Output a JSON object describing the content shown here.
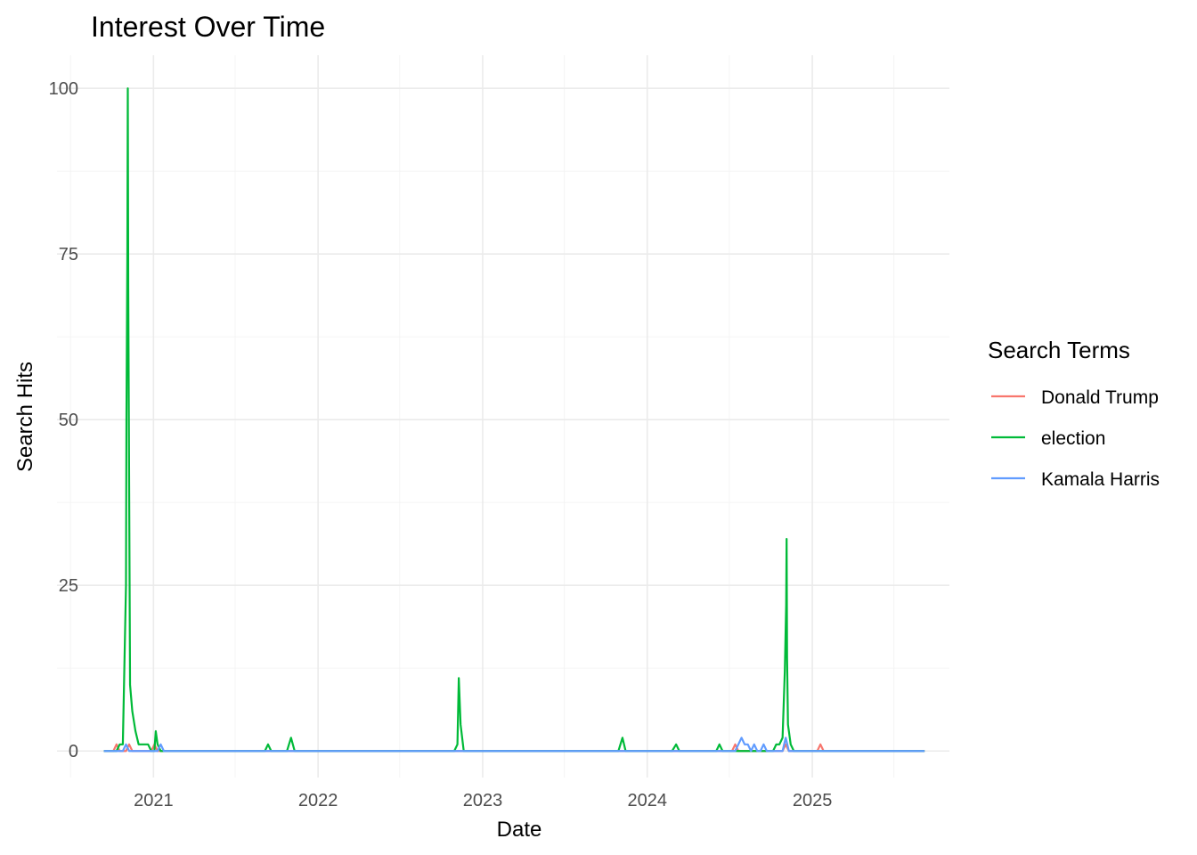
{
  "chart_data": {
    "type": "line",
    "title": "Interest Over Time",
    "xlabel": "Date",
    "ylabel": "Search Hits",
    "xlim": [
      "2020-06-01",
      "2025-11-01"
    ],
    "ylim": [
      -4,
      105
    ],
    "x_ticks": [
      {
        "date": "2021-01-01",
        "label": "2021"
      },
      {
        "date": "2022-01-01",
        "label": "2022"
      },
      {
        "date": "2023-01-01",
        "label": "2023"
      },
      {
        "date": "2024-01-01",
        "label": "2024"
      },
      {
        "date": "2025-01-01",
        "label": "2025"
      }
    ],
    "x_minor_ticks": [
      "2020-07-01",
      "2021-07-01",
      "2022-07-01",
      "2023-07-01",
      "2024-07-01",
      "2025-07-01"
    ],
    "y_ticks": [
      0,
      25,
      50,
      75,
      100
    ],
    "y_minor_ticks": [
      12.5,
      37.5,
      62.5,
      87.5
    ],
    "grid": true,
    "legend": {
      "title": "Search Terms",
      "position": "right"
    },
    "series": [
      {
        "name": "Donald Trump",
        "color": "#F8766D",
        "points": [
          [
            "2020-09-13",
            0
          ],
          [
            "2020-10-04",
            0
          ],
          [
            "2020-10-11",
            1
          ],
          [
            "2020-10-18",
            0
          ],
          [
            "2020-11-01",
            0
          ],
          [
            "2020-11-08",
            1
          ],
          [
            "2020-11-15",
            0
          ],
          [
            "2020-12-27",
            0
          ],
          [
            "2021-01-03",
            1
          ],
          [
            "2021-01-10",
            0
          ],
          [
            "2024-07-07",
            0
          ],
          [
            "2024-07-14",
            1
          ],
          [
            "2024-07-21",
            0
          ],
          [
            "2024-10-27",
            0
          ],
          [
            "2024-11-03",
            1
          ],
          [
            "2024-11-10",
            0
          ],
          [
            "2025-01-12",
            0
          ],
          [
            "2025-01-19",
            1
          ],
          [
            "2025-01-26",
            0
          ],
          [
            "2025-09-07",
            0
          ]
        ]
      },
      {
        "name": "election",
        "color": "#00BA38",
        "points": [
          [
            "2020-09-13",
            0
          ],
          [
            "2020-10-11",
            0
          ],
          [
            "2020-10-18",
            1
          ],
          [
            "2020-10-25",
            1
          ],
          [
            "2020-11-01",
            25
          ],
          [
            "2020-11-02",
            50
          ],
          [
            "2020-11-04",
            75
          ],
          [
            "2020-11-05",
            100
          ],
          [
            "2020-11-06",
            70
          ],
          [
            "2020-11-08",
            40
          ],
          [
            "2020-11-10",
            10
          ],
          [
            "2020-11-15",
            6
          ],
          [
            "2020-11-22",
            3
          ],
          [
            "2020-11-29",
            1
          ],
          [
            "2020-12-20",
            1
          ],
          [
            "2020-12-27",
            0
          ],
          [
            "2021-01-03",
            0
          ],
          [
            "2021-01-06",
            3
          ],
          [
            "2021-01-10",
            1
          ],
          [
            "2021-01-17",
            0
          ],
          [
            "2021-09-05",
            0
          ],
          [
            "2021-09-12",
            1
          ],
          [
            "2021-09-19",
            0
          ],
          [
            "2021-10-24",
            0
          ],
          [
            "2021-11-02",
            2
          ],
          [
            "2021-11-10",
            0
          ],
          [
            "2022-10-30",
            0
          ],
          [
            "2022-11-06",
            1
          ],
          [
            "2022-11-09",
            11
          ],
          [
            "2022-11-13",
            4
          ],
          [
            "2022-11-20",
            0
          ],
          [
            "2023-10-29",
            0
          ],
          [
            "2023-11-07",
            2
          ],
          [
            "2023-11-14",
            0
          ],
          [
            "2024-02-25",
            0
          ],
          [
            "2024-03-05",
            1
          ],
          [
            "2024-03-12",
            0
          ],
          [
            "2024-06-02",
            0
          ],
          [
            "2024-06-09",
            1
          ],
          [
            "2024-06-16",
            0
          ],
          [
            "2024-10-06",
            0
          ],
          [
            "2024-10-13",
            1
          ],
          [
            "2024-10-20",
            1
          ],
          [
            "2024-10-27",
            2
          ],
          [
            "2024-11-01",
            12
          ],
          [
            "2024-11-04",
            22
          ],
          [
            "2024-11-05",
            32
          ],
          [
            "2024-11-06",
            14
          ],
          [
            "2024-11-08",
            4
          ],
          [
            "2024-11-14",
            1
          ],
          [
            "2024-11-21",
            0
          ],
          [
            "2025-09-07",
            0
          ]
        ]
      },
      {
        "name": "Kamala Harris",
        "color": "#619CFF",
        "points": [
          [
            "2020-09-13",
            0
          ],
          [
            "2020-10-25",
            0
          ],
          [
            "2020-11-01",
            1
          ],
          [
            "2020-11-08",
            0
          ],
          [
            "2021-01-10",
            0
          ],
          [
            "2021-01-17",
            1
          ],
          [
            "2021-01-24",
            0
          ],
          [
            "2024-07-14",
            0
          ],
          [
            "2024-07-21",
            1
          ],
          [
            "2024-07-28",
            2
          ],
          [
            "2024-08-04",
            1
          ],
          [
            "2024-08-11",
            1
          ],
          [
            "2024-08-18",
            0
          ],
          [
            "2024-08-25",
            1
          ],
          [
            "2024-09-01",
            0
          ],
          [
            "2024-09-08",
            0
          ],
          [
            "2024-09-15",
            1
          ],
          [
            "2024-09-22",
            0
          ],
          [
            "2024-10-27",
            0
          ],
          [
            "2024-11-03",
            2
          ],
          [
            "2024-11-10",
            0
          ],
          [
            "2025-09-07",
            0
          ]
        ]
      }
    ]
  }
}
